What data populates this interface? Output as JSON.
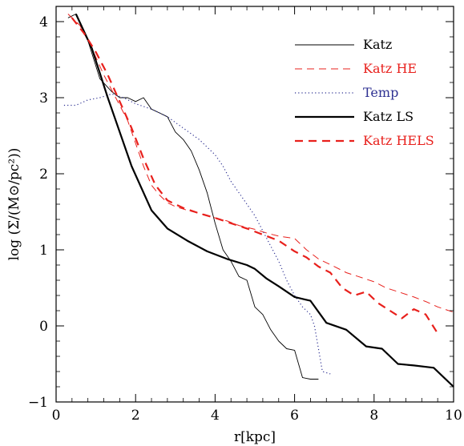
{
  "chart_data": {
    "type": "line",
    "title": "",
    "xlabel": "r[kpc]",
    "ylabel": "log (Σ/(M⊙/pc²))",
    "xlim": [
      0,
      10
    ],
    "ylim": [
      -1,
      4.2
    ],
    "xticks": [
      0,
      2,
      4,
      6,
      8,
      10
    ],
    "xtick_labels": [
      "0",
      "2",
      "4",
      "6",
      "8",
      "10"
    ],
    "yticks": [
      -1,
      0,
      1,
      2,
      3,
      4
    ],
    "ytick_labels": [
      "−1",
      "0",
      "1",
      "2",
      "3",
      "4"
    ],
    "grid": false,
    "legend_position": "top-right",
    "series": [
      {
        "name": "Katz",
        "color": "#000000",
        "style": "solid-thin",
        "x": [
          0.3,
          0.5,
          0.8,
          1.1,
          1.4,
          1.6,
          1.8,
          2.0,
          2.2,
          2.4,
          2.6,
          2.8,
          3.0,
          3.2,
          3.4,
          3.6,
          3.8,
          4.0,
          4.2,
          4.4,
          4.6,
          4.8,
          5.0,
          5.2,
          5.4,
          5.6,
          5.8,
          6.0,
          6.2,
          6.4,
          6.6
        ],
        "y": [
          4.05,
          4.1,
          3.75,
          3.25,
          3.08,
          3.0,
          3.0,
          2.95,
          3.0,
          2.85,
          2.8,
          2.75,
          2.55,
          2.45,
          2.3,
          2.05,
          1.75,
          1.35,
          1.0,
          0.85,
          0.65,
          0.6,
          0.25,
          0.15,
          -0.05,
          -0.2,
          -0.3,
          -0.32,
          -0.68,
          -0.7,
          -0.7
        ]
      },
      {
        "name": "Katz HE",
        "color": "#e8201c",
        "style": "dashed-thin",
        "x": [
          0.3,
          0.6,
          0.9,
          1.2,
          1.5,
          1.8,
          2.0,
          2.2,
          2.4,
          2.6,
          2.8,
          3.0,
          3.3,
          3.6,
          4.0,
          4.3,
          4.6,
          5.0,
          5.3,
          5.6,
          6.0,
          6.3,
          6.6,
          7.0,
          7.3,
          7.6,
          8.0,
          8.3,
          8.6,
          9.0,
          9.3,
          9.6,
          10.0
        ],
        "y": [
          4.1,
          3.95,
          3.65,
          3.3,
          3.0,
          2.7,
          2.4,
          2.1,
          1.85,
          1.72,
          1.62,
          1.57,
          1.52,
          1.48,
          1.42,
          1.38,
          1.32,
          1.27,
          1.22,
          1.18,
          1.15,
          1.0,
          0.88,
          0.78,
          0.7,
          0.65,
          0.58,
          0.5,
          0.45,
          0.38,
          0.32,
          0.25,
          0.18
        ]
      },
      {
        "name": "Temp",
        "color": "#2e3192",
        "style": "dotted",
        "x": [
          0.2,
          0.5,
          0.8,
          1.1,
          1.4,
          1.7,
          2.0,
          2.4,
          2.8,
          3.2,
          3.6,
          4.0,
          4.2,
          4.4,
          4.6,
          4.8,
          5.0,
          5.2,
          5.4,
          5.6,
          5.8,
          6.0,
          6.2,
          6.4,
          6.5,
          6.6,
          6.7,
          6.9
        ],
        "y": [
          2.9,
          2.9,
          2.97,
          3.0,
          3.05,
          3.0,
          2.92,
          2.85,
          2.75,
          2.6,
          2.45,
          2.25,
          2.1,
          1.9,
          1.75,
          1.6,
          1.45,
          1.25,
          1.05,
          0.85,
          0.6,
          0.4,
          0.25,
          0.15,
          0.0,
          -0.3,
          -0.6,
          -0.63
        ]
      },
      {
        "name": "Katz LS",
        "color": "#000000",
        "style": "solid-thick",
        "x": [
          0.5,
          0.9,
          1.3,
          1.9,
          2.4,
          2.8,
          3.3,
          3.8,
          4.3,
          4.8,
          5.0,
          5.3,
          5.6,
          6.0,
          6.4,
          6.8,
          7.3,
          7.8,
          8.2,
          8.6,
          9.0,
          9.5,
          10.0
        ],
        "y": [
          4.1,
          3.65,
          3.0,
          2.1,
          1.52,
          1.28,
          1.12,
          0.98,
          0.88,
          0.8,
          0.75,
          0.62,
          0.52,
          0.38,
          0.33,
          0.04,
          -0.05,
          -0.27,
          -0.3,
          -0.5,
          -0.52,
          -0.55,
          -0.8
        ]
      },
      {
        "name": "Katz HELS",
        "color": "#e8201c",
        "style": "dashed-thick",
        "x": [
          0.4,
          0.7,
          1.0,
          1.3,
          1.6,
          1.9,
          2.2,
          2.5,
          2.8,
          3.2,
          3.6,
          4.0,
          4.4,
          4.8,
          5.2,
          5.6,
          6.0,
          6.3,
          6.6,
          6.9,
          7.2,
          7.5,
          7.8,
          8.1,
          8.4,
          8.7,
          9.0,
          9.3,
          9.6
        ],
        "y": [
          4.05,
          3.85,
          3.6,
          3.3,
          2.95,
          2.6,
          2.2,
          1.85,
          1.65,
          1.55,
          1.48,
          1.42,
          1.35,
          1.28,
          1.2,
          1.12,
          0.98,
          0.9,
          0.78,
          0.7,
          0.5,
          0.4,
          0.45,
          0.3,
          0.2,
          0.1,
          0.22,
          0.15,
          -0.1
        ]
      }
    ]
  }
}
